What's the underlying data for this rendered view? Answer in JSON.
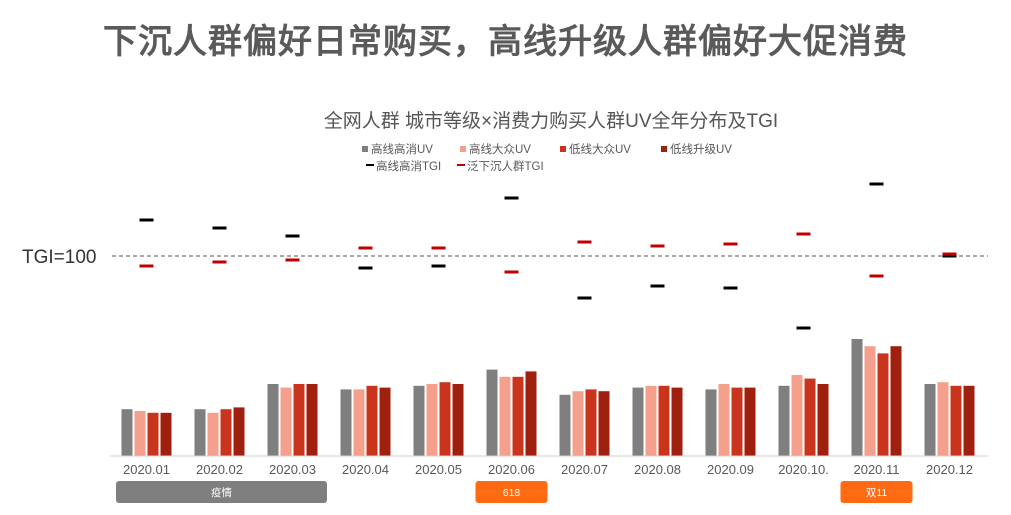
{
  "page_title": "下沉人群偏好日常购买，高线升级人群偏好大促消费",
  "chart_data": {
    "type": "bar",
    "title": "全网人群 城市等级×消费力购买人群UV全年分布及TGI",
    "categories": [
      "2020.01",
      "2020.02",
      "2020.03",
      "2020.04",
      "2020.05",
      "2020.06",
      "2020.07",
      "2020.08",
      "2020.09",
      "2020.10.",
      "2020.11",
      "2020.12"
    ],
    "bar_ylim": [
      0,
      100
    ],
    "series": [
      {
        "name": "高线高消UV",
        "color": "#7f7f7f",
        "values": [
          26,
          26,
          40,
          37,
          39,
          48,
          34,
          38,
          37,
          39,
          65,
          40
        ]
      },
      {
        "name": "高线大众UV",
        "color": "#f4a08c",
        "values": [
          25,
          24,
          38,
          37,
          40,
          44,
          36,
          39,
          40,
          45,
          61,
          41
        ]
      },
      {
        "name": "低线大众UV",
        "color": "#c8341c",
        "values": [
          24,
          26,
          40,
          39,
          41,
          44,
          37,
          39,
          38,
          43,
          57,
          39
        ]
      },
      {
        "name": "低线升级UV",
        "color": "#a0200f",
        "values": [
          24,
          27,
          40,
          38,
          40,
          47,
          36,
          38,
          38,
          40,
          61,
          39
        ]
      }
    ],
    "tgi_series": [
      {
        "name": "高线高消TGI",
        "color": "#000000",
        "values": [
          118,
          114,
          110,
          94,
          95,
          129,
          79,
          85,
          84,
          64,
          136,
          100
        ]
      },
      {
        "name": "泛下沉人群TGI",
        "color": "#c00000",
        "values": [
          95,
          97,
          98,
          104,
          104,
          92,
          107,
          105,
          106,
          111,
          90,
          101
        ]
      }
    ],
    "tgi_ylim": [
      0,
      200
    ],
    "reference_line": {
      "label": "TGI=100",
      "value": 100
    },
    "events": [
      {
        "label": "疫情",
        "start": "2020.01",
        "end": "2020.03",
        "color": "#7f7f7f"
      },
      {
        "label": "618",
        "start": "2020.06",
        "end": "2020.06",
        "color": "#ff6a12"
      },
      {
        "label": "双11",
        "start": "2020.11",
        "end": "2020.11",
        "color": "#ff6a12"
      }
    ]
  }
}
